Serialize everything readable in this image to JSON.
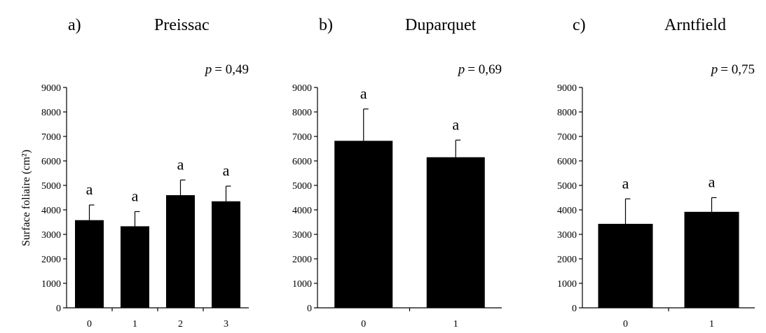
{
  "chart_data": [
    {
      "type": "bar",
      "panel_label": "a)",
      "title": "Preissac",
      "p_label": "p",
      "p_value": "= 0,49",
      "ylabel": "Surface foliaire (cm²)",
      "xlabel": "",
      "ylim": [
        0,
        9000
      ],
      "yticks": [
        "0",
        "1000",
        "2000",
        "3000",
        "4000",
        "5000",
        "6000",
        "7000",
        "8000",
        "9000"
      ],
      "categories": [
        "0",
        "1",
        "2",
        "3"
      ],
      "values": [
        3580,
        3330,
        4600,
        4350
      ],
      "errors": [
        620,
        600,
        620,
        620
      ],
      "letters": [
        "a",
        "a",
        "a",
        "a"
      ]
    },
    {
      "type": "bar",
      "panel_label": "b)",
      "title": "Duparquet",
      "p_label": "p",
      "p_value": "= 0,69",
      "ylabel": "",
      "xlabel": "",
      "ylim": [
        0,
        9000
      ],
      "yticks": [
        "0",
        "1000",
        "2000",
        "3000",
        "4000",
        "5000",
        "6000",
        "7000",
        "8000",
        "9000"
      ],
      "categories": [
        "0",
        "1"
      ],
      "values": [
        6820,
        6150
      ],
      "errors": [
        1300,
        700
      ],
      "letters": [
        "a",
        "a"
      ]
    },
    {
      "type": "bar",
      "panel_label": "c)",
      "title": "Arntfield",
      "p_label": "p",
      "p_value": "= 0,75",
      "ylabel": "",
      "xlabel": "",
      "ylim": [
        0,
        9000
      ],
      "yticks": [
        "0",
        "1000",
        "2000",
        "3000",
        "4000",
        "5000",
        "6000",
        "7000",
        "8000",
        "9000"
      ],
      "categories": [
        "0",
        "1"
      ],
      "values": [
        3430,
        3920
      ],
      "errors": [
        1020,
        580
      ],
      "letters": [
        "a",
        "a"
      ]
    }
  ]
}
